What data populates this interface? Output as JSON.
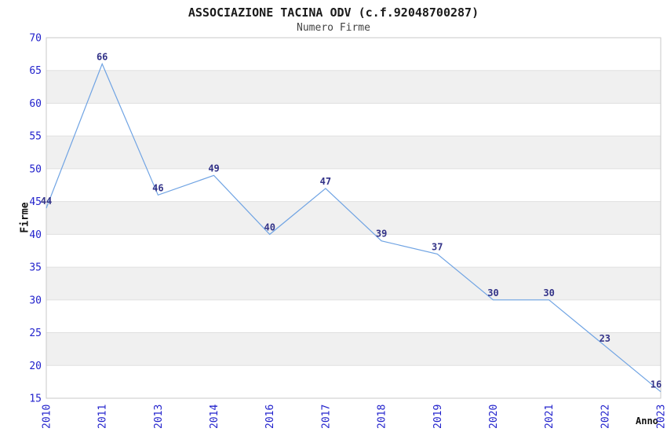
{
  "chart_data": {
    "type": "line",
    "title": "ASSOCIAZIONE TACINA ODV (c.f.92048700287)",
    "subtitle": "Numero Firme",
    "xlabel": "Anno",
    "ylabel": "Firme",
    "categories": [
      "2010",
      "2011",
      "2013",
      "2014",
      "2016",
      "2017",
      "2018",
      "2019",
      "2020",
      "2021",
      "2022",
      "2023"
    ],
    "values": [
      44,
      66,
      46,
      49,
      40,
      47,
      39,
      37,
      30,
      30,
      23,
      16
    ],
    "ylim": [
      15,
      70
    ],
    "ytick_step": 5,
    "ytick_labels": [
      "15",
      "20",
      "25",
      "30",
      "35",
      "40",
      "45",
      "50",
      "55",
      "60",
      "65",
      "70"
    ],
    "grid": "alternating-horizontal-bands",
    "legend_position": "none",
    "markers": "none",
    "colors": {
      "line": "#6FA3E3",
      "tick_label": "#2222CC",
      "data_label": "#333388",
      "band_fill": "#F0F0F0",
      "gridline": "#E0E0E0",
      "plot_border": "#C9C9C9",
      "background": "#FFFFFF"
    }
  }
}
